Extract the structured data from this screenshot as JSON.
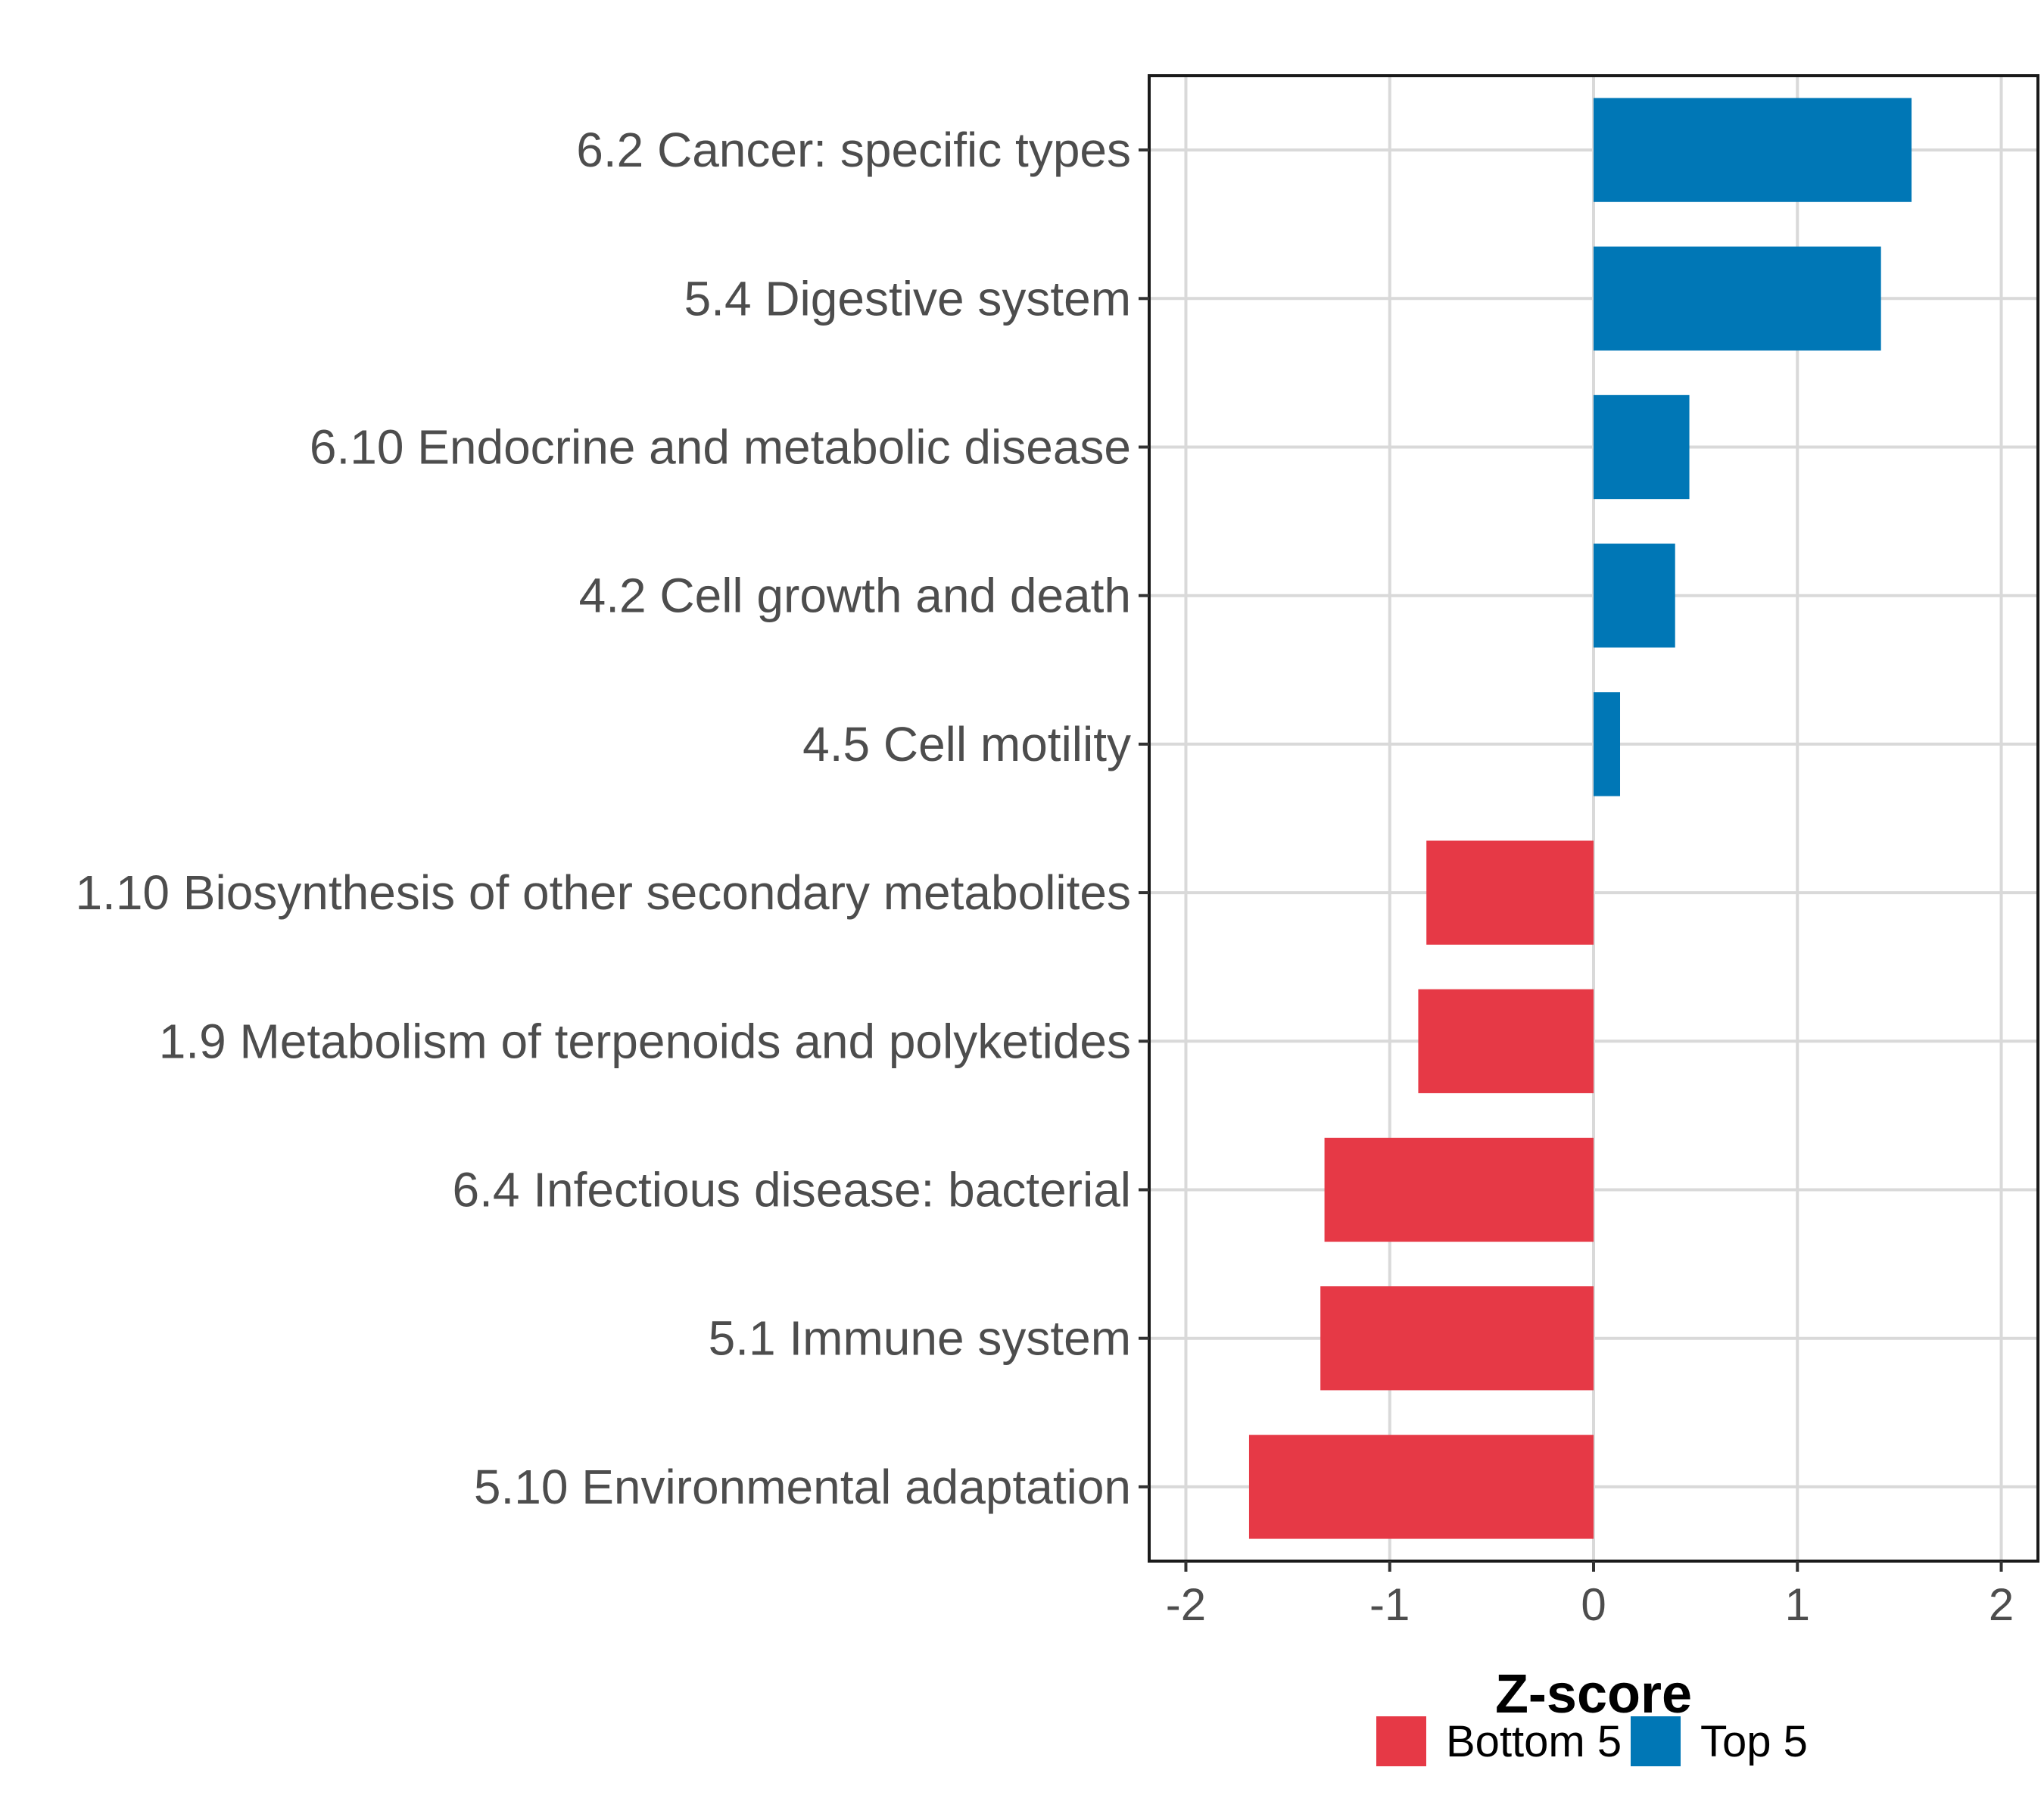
{
  "chart_data": {
    "type": "bar",
    "orientation": "horizontal",
    "categories": [
      "6.2 Cancer: specific types",
      "5.4 Digestive system",
      "6.10 Endocrine and metabolic disease",
      "4.2 Cell growth and death",
      "4.5 Cell motility",
      "1.10 Biosynthesis of other secondary metabolites",
      "1.9 Metabolism of terpenoids and polyketides",
      "6.4 Infectious disease: bacterial",
      "5.1 Immune system",
      "5.10 Environmental adaptation"
    ],
    "values": [
      1.56,
      1.41,
      0.47,
      0.4,
      0.13,
      -0.82,
      -0.86,
      -1.32,
      -1.34,
      -1.69
    ],
    "groups": [
      "Top 5",
      "Top 5",
      "Top 5",
      "Top 5",
      "Top 5",
      "Bottom 5",
      "Bottom 5",
      "Bottom 5",
      "Bottom 5",
      "Bottom 5"
    ],
    "xlabel": "Z-score",
    "ylabel": "",
    "xlim": [
      -2.18,
      2.18
    ],
    "xticks": [
      "-2",
      "-1",
      "0",
      "1",
      "2"
    ],
    "xtick_values": [
      -2,
      -1,
      0,
      1,
      2
    ],
    "grid": true,
    "legend": {
      "position": "bottom",
      "entries": [
        {
          "label": "Bottom 5",
          "color": "#e63946"
        },
        {
          "label": "Top 5",
          "color": "#0077b6"
        }
      ]
    }
  }
}
